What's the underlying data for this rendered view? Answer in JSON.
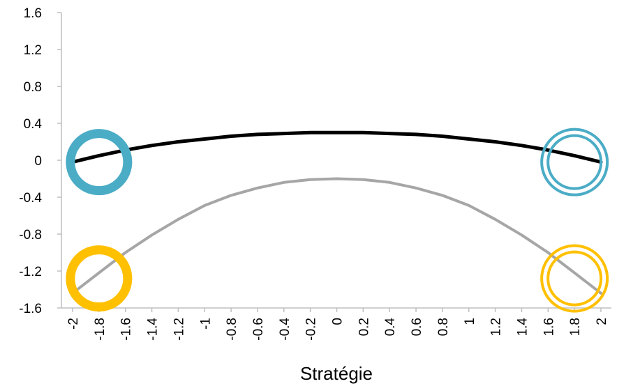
{
  "chart_data": {
    "type": "line",
    "xlabel": "Stratégie",
    "ylabel": "",
    "ylim": [
      -1.6,
      1.6
    ],
    "y_ticks": [
      "1.6",
      "1.2",
      "0.8",
      "0.4",
      "0",
      "-0.4",
      "-0.8",
      "-1.2",
      "-1.6"
    ],
    "x_ticks": [
      "-2",
      "-1.8",
      "-1.6",
      "-1.4",
      "-1.2",
      "-1",
      "-0.8",
      "-0.6",
      "-0.4",
      "-0.2",
      "0",
      "0.2",
      "0.4",
      "0.6",
      "0.8",
      "1",
      "1.2",
      "1.4",
      "1.6",
      "1.8",
      "2"
    ],
    "x": [
      -2,
      -1.8,
      -1.6,
      -1.4,
      -1.2,
      -1,
      -0.8,
      -0.6,
      -0.4,
      -0.2,
      0,
      0.2,
      0.4,
      0.6,
      0.8,
      1,
      1.2,
      1.4,
      1.6,
      1.8,
      2
    ],
    "grid": false,
    "series": [
      {
        "color": "#000000",
        "values": [
          -0.02,
          0.05,
          0.11,
          0.16,
          0.2,
          0.23,
          0.26,
          0.28,
          0.29,
          0.3,
          0.3,
          0.3,
          0.29,
          0.28,
          0.26,
          0.23,
          0.2,
          0.16,
          0.11,
          0.05,
          -0.02
        ]
      },
      {
        "color": "#a6a6a6",
        "values": [
          -1.44,
          -1.22,
          -1.0,
          -0.81,
          -0.64,
          -0.49,
          -0.38,
          -0.3,
          -0.24,
          -0.21,
          -0.2,
          -0.21,
          -0.24,
          -0.3,
          -0.38,
          -0.49,
          -0.64,
          -0.81,
          -1.0,
          -1.22,
          -1.44
        ]
      }
    ],
    "markers": [
      {
        "color": "#4bacc6",
        "style": "thick",
        "x": -1.8,
        "y": -0.02
      },
      {
        "color": "#4bacc6",
        "style": "double",
        "x": 1.8,
        "y": -0.02
      },
      {
        "color": "#ffc000",
        "style": "thick",
        "x": -1.8,
        "y": -1.28
      },
      {
        "color": "#ffc000",
        "style": "double",
        "x": 1.8,
        "y": -1.28
      }
    ]
  }
}
